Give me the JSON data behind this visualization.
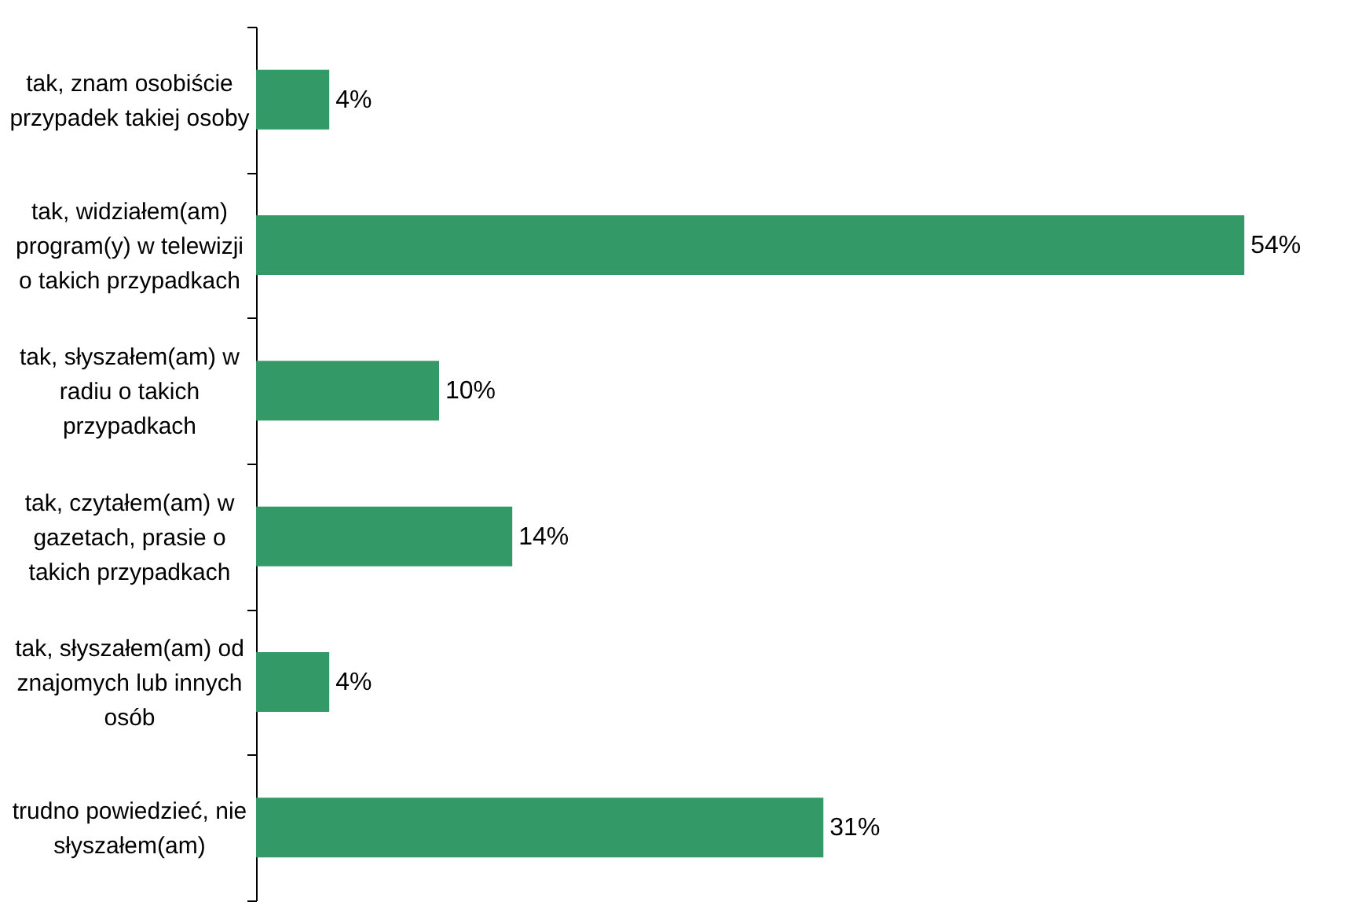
{
  "chart_data": {
    "type": "bar",
    "orientation": "horizontal",
    "categories": [
      "tak, znam osobiście przypadek takiej osoby",
      "tak, widziałem(am) program(y) w telewizji o takich przypadkach",
      "tak, słyszałem(am) w radiu o takich przypadkach",
      "tak, czytałem(am) w gazetach, prasie o takich przypadkach",
      "tak, słyszałem(am) od znajomych lub innych osób",
      "trudno powiedzieć, nie słyszałem(am)"
    ],
    "values": [
      4,
      54,
      10,
      14,
      4,
      31
    ],
    "color": "#339966",
    "data_labels": true,
    "value_labels": [
      "4%",
      "54%",
      "10%",
      "14%",
      "4%",
      "31%"
    ],
    "grid": false
  }
}
